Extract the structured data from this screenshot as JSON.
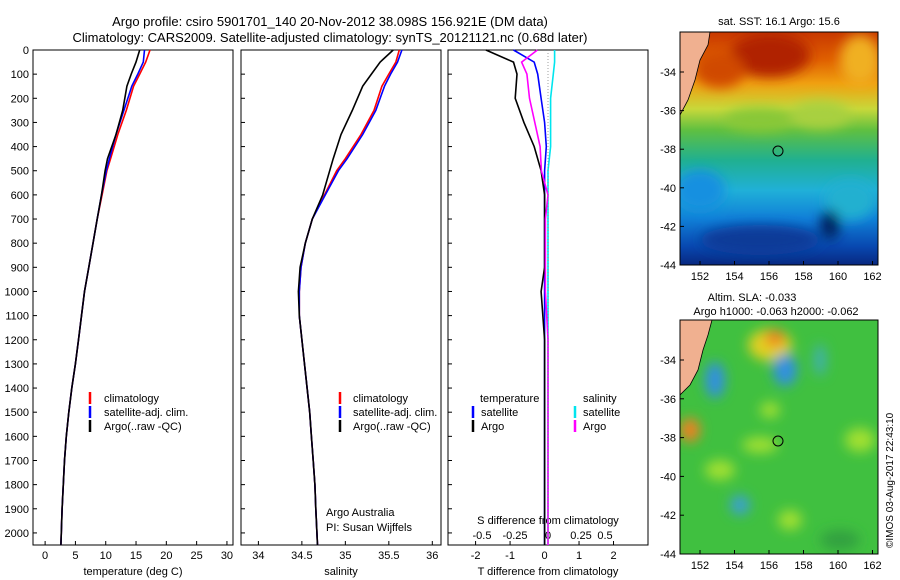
{
  "header": {
    "title_line1": "Argo profile: csiro 5901701_140 20-Nov-2012 38.098S 156.921E (DM data)",
    "title_line2": "Climatology: CARS2009. Satellite-adjusted climatology: synTS_20121121.nc (0.68d later)"
  },
  "colors": {
    "climatology": "#ff0000",
    "satellite": "#0000ff",
    "argo": "#000000",
    "salinity_satellite": "#00e5ee",
    "salinity_argo": "#ff00ff"
  },
  "depth_axis": {
    "ticks": [
      "0",
      "100",
      "200",
      "300",
      "400",
      "500",
      "600",
      "700",
      "800",
      "900",
      "1000",
      "1100",
      "1200",
      "1300",
      "1400",
      "1500",
      "1600",
      "1700",
      "1800",
      "1900",
      "2000"
    ],
    "ylim": [
      0,
      2050
    ],
    "inverted": true
  },
  "panel_temp": {
    "xlabel": "temperature (deg C)",
    "xticks": [
      "0",
      "5",
      "10",
      "15",
      "20",
      "25",
      "30"
    ],
    "xlim": [
      -2,
      31
    ],
    "legend": {
      "climatology": "climatology",
      "satellite": "satellite-adj. clim.",
      "argo": "Argo(..raw -QC)"
    }
  },
  "panel_sal": {
    "xlabel": "salinity",
    "xticks": [
      "34",
      "34.5",
      "35",
      "35.5",
      "36"
    ],
    "xlim": [
      33.8,
      36.1
    ],
    "legend": {
      "climatology": "climatology",
      "satellite": "satellite-adj. clim.",
      "argo": "Argo(..raw -QC)"
    },
    "credit1": "Argo Australia",
    "credit2": "PI: Susan Wijffels"
  },
  "panel_diff": {
    "xlabel": "T difference from climatology",
    "xticks": [
      "-2",
      "-1",
      "0",
      "1",
      "2"
    ],
    "xlim": [
      -2.8,
      3.0
    ],
    "top_label": "S difference from climatology",
    "top_ticks": [
      "-0.5",
      "-0.25",
      "0",
      "0.25",
      "0.5"
    ],
    "legend_temp_title": "temperature",
    "legend_sal_title": "salinity",
    "legend_sat": "satellite",
    "legend_argo": "Argo",
    "legend_sal_sat": "satellite",
    "legend_sal_argo": "Argo"
  },
  "map_sst": {
    "title": "sat. SST: 16.1  Argo: 15.6",
    "yticks": [
      "-34",
      "-36",
      "-38",
      "-40",
      "-42",
      "-44"
    ],
    "xticks": [
      "152",
      "154",
      "156",
      "158",
      "160",
      "162"
    ]
  },
  "map_sla": {
    "title_line1": "Altim. SLA: -0.033",
    "title_line2": "Argo h1000: -0.063 h2000: -0.062",
    "yticks": [
      "-34",
      "-36",
      "-38",
      "-40",
      "-42",
      "-44"
    ],
    "xticks": [
      "152",
      "154",
      "156",
      "158",
      "160",
      "162"
    ]
  },
  "side_stamp": "©IMOS 03-Aug-2017 22:43:10",
  "chart_data": [
    {
      "type": "line",
      "xlabel": "temperature (deg C)",
      "ylabel": "",
      "xlim": [
        -2,
        31
      ],
      "ylim": [
        2050,
        0
      ],
      "series": [
        {
          "name": "climatology",
          "x": [
            17.3,
            16.6,
            15.6,
            14.6,
            13.4,
            12.0,
            10.8,
            10.2,
            9.4,
            8.6,
            7.9,
            7.2,
            6.5,
            6.0,
            5.5,
            5.0,
            4.4,
            3.9,
            3.5,
            3.2,
            3.0,
            2.8,
            2.6
          ],
          "y": [
            0,
            50,
            100,
            150,
            250,
            350,
            450,
            500,
            600,
            700,
            800,
            900,
            1000,
            1100,
            1200,
            1300,
            1400,
            1500,
            1600,
            1700,
            1800,
            1900,
            2050
          ]
        },
        {
          "name": "satellite-adj. clim.",
          "x": [
            16.4,
            16.2,
            15.3,
            14.3,
            13.0,
            11.7,
            10.6,
            10.1,
            9.3,
            8.6,
            7.9,
            7.2,
            6.5,
            6.0,
            5.5,
            5.0,
            4.4,
            3.9,
            3.5,
            3.2,
            3.0,
            2.8,
            2.6
          ],
          "y": [
            0,
            50,
            100,
            150,
            250,
            350,
            450,
            500,
            600,
            700,
            800,
            900,
            1000,
            1100,
            1200,
            1300,
            1400,
            1500,
            1600,
            1700,
            1800,
            1900,
            2050
          ]
        },
        {
          "name": "Argo(..raw -QC)",
          "x": [
            15.6,
            15.0,
            14.2,
            13.5,
            12.8,
            11.7,
            10.3,
            9.9,
            9.3,
            8.6,
            7.9,
            7.2,
            6.5,
            6.0,
            5.5,
            5.0,
            4.4,
            3.9,
            3.5,
            3.2,
            3.0,
            2.8,
            2.6
          ],
          "y": [
            0,
            50,
            100,
            150,
            250,
            350,
            450,
            500,
            600,
            700,
            800,
            900,
            1000,
            1100,
            1200,
            1300,
            1400,
            1500,
            1600,
            1700,
            1800,
            1900,
            2050
          ]
        }
      ]
    },
    {
      "type": "line",
      "xlabel": "salinity",
      "ylabel": "",
      "xlim": [
        33.8,
        36.1
      ],
      "ylim": [
        2050,
        0
      ],
      "series": [
        {
          "name": "climatology",
          "x": [
            35.62,
            35.58,
            35.5,
            35.42,
            35.33,
            35.18,
            35.0,
            34.9,
            34.76,
            34.62,
            34.54,
            34.49,
            34.47,
            34.47,
            34.5,
            34.53,
            34.56,
            34.59,
            34.61,
            34.63,
            34.65,
            34.66,
            34.68
          ],
          "y": [
            0,
            50,
            100,
            150,
            250,
            350,
            450,
            500,
            600,
            700,
            800,
            900,
            1000,
            1100,
            1200,
            1300,
            1400,
            1500,
            1600,
            1700,
            1800,
            1900,
            2050
          ]
        },
        {
          "name": "satellite-adj. clim.",
          "x": [
            35.65,
            35.6,
            35.52,
            35.45,
            35.35,
            35.2,
            35.02,
            34.92,
            34.77,
            34.62,
            34.54,
            34.49,
            34.47,
            34.47,
            34.5,
            34.53,
            34.56,
            34.59,
            34.61,
            34.63,
            34.65,
            34.66,
            34.68
          ],
          "y": [
            0,
            50,
            100,
            150,
            250,
            350,
            450,
            500,
            600,
            700,
            800,
            900,
            1000,
            1100,
            1200,
            1300,
            1400,
            1500,
            1600,
            1700,
            1800,
            1900,
            2050
          ]
        },
        {
          "name": "Argo(..raw -QC)",
          "x": [
            35.55,
            35.4,
            35.3,
            35.2,
            35.08,
            34.95,
            34.86,
            34.82,
            34.74,
            34.62,
            34.54,
            34.48,
            34.46,
            34.47,
            34.5,
            34.53,
            34.56,
            34.59,
            34.61,
            34.63,
            34.65,
            34.66,
            34.68
          ],
          "y": [
            0,
            50,
            100,
            150,
            250,
            350,
            450,
            500,
            600,
            700,
            800,
            900,
            1000,
            1100,
            1200,
            1300,
            1400,
            1500,
            1600,
            1700,
            1800,
            1900,
            2050
          ]
        }
      ]
    },
    {
      "type": "line",
      "xlabel": "T difference from climatology",
      "ylabel": "",
      "xlim": [
        -2.8,
        3.0
      ],
      "ylim": [
        2050,
        0
      ],
      "series": [
        {
          "name": "satellite",
          "x": [
            -0.9,
            -0.3,
            -0.2,
            -0.1,
            0.0,
            0.05,
            0.0,
            0.0,
            0.0,
            0.0,
            0.0,
            0.0,
            0.0,
            0.0,
            0.0,
            0.0,
            0.0
          ],
          "y": [
            0,
            50,
            100,
            200,
            300,
            400,
            500,
            600,
            700,
            800,
            900,
            1000,
            1200,
            1400,
            1600,
            1800,
            2050
          ]
        },
        {
          "name": "Argo",
          "x": [
            -1.7,
            -0.9,
            -0.8,
            -0.85,
            -0.6,
            -0.3,
            -0.1,
            0.0,
            0.0,
            0.0,
            0.0,
            -0.1,
            0.0,
            0.0,
            0.0,
            0.0,
            0.0
          ],
          "y": [
            0,
            50,
            100,
            200,
            300,
            400,
            500,
            600,
            700,
            800,
            900,
            1000,
            1200,
            1400,
            1600,
            1800,
            2050
          ]
        },
        {
          "name": "S satellite",
          "x": [
            0.05,
            0.05,
            0.04,
            0.02,
            0.02,
            0.02,
            0.0,
            0.0,
            0.0,
            0.0,
            0.0,
            0.0,
            0.0,
            0.0,
            0.0,
            0.0,
            0.0
          ],
          "y": [
            0,
            50,
            100,
            200,
            300,
            400,
            500,
            600,
            700,
            800,
            900,
            1000,
            1200,
            1400,
            1600,
            1800,
            2050
          ]
        },
        {
          "name": "S Argo",
          "x": [
            -0.08,
            -0.2,
            -0.16,
            -0.14,
            -0.1,
            -0.06,
            -0.05,
            0.0,
            -0.02,
            -0.02,
            -0.02,
            -0.02,
            0.0,
            0.0,
            0.0,
            0.0,
            0.0
          ],
          "y": [
            0,
            50,
            100,
            200,
            300,
            400,
            500,
            600,
            700,
            800,
            900,
            1000,
            1200,
            1400,
            1600,
            1800,
            2050
          ]
        }
      ]
    }
  ]
}
